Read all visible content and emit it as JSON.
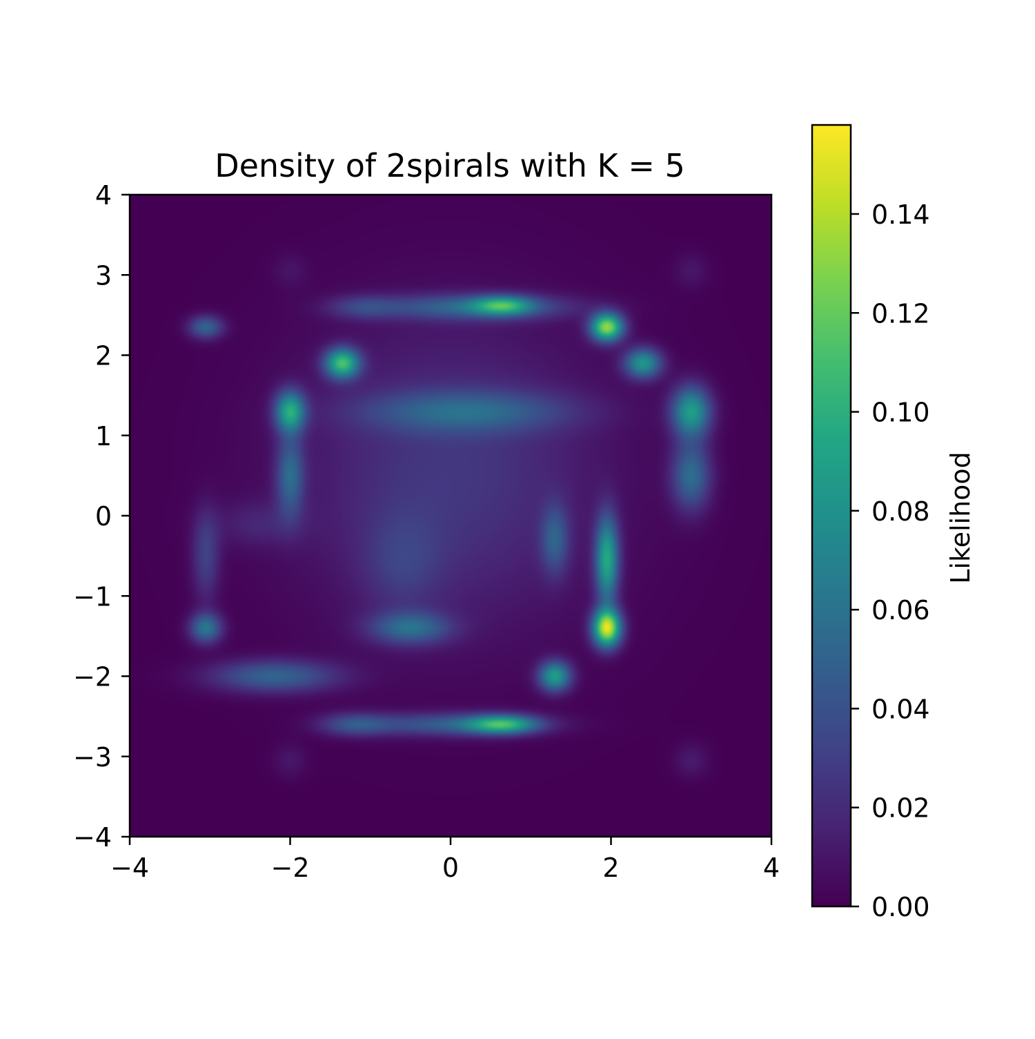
{
  "chart_data": {
    "type": "heatmap",
    "title": "Density of 2spirals with K = 5",
    "xlabel": "",
    "ylabel": "",
    "xlim": [
      -4,
      4
    ],
    "ylim": [
      -4,
      4
    ],
    "x_ticks": [
      -4,
      -2,
      0,
      2,
      4
    ],
    "x_tick_labels": [
      "−4",
      "−2",
      "0",
      "2",
      "4"
    ],
    "y_ticks": [
      -4,
      -3,
      -2,
      -1,
      0,
      1,
      2,
      3,
      4
    ],
    "y_tick_labels": [
      "−4",
      "−3",
      "−2",
      "−1",
      "0",
      "1",
      "2",
      "3",
      "4"
    ],
    "grid": false,
    "colormap": "viridis",
    "colorbar": {
      "label": "Likelihood",
      "range": [
        0,
        0.158
      ],
      "ticks": [
        0,
        0.02,
        0.04,
        0.06,
        0.08,
        0.1,
        0.12,
        0.14
      ],
      "tick_labels": [
        "0.00",
        "0.02",
        "0.04",
        "0.06",
        "0.08",
        "0.10",
        "0.12",
        "0.14"
      ]
    },
    "density_components": [
      {
        "mx": 0.0,
        "my": 0.5,
        "sx": 1.3,
        "sy": 1.3,
        "w": 0.026
      },
      {
        "mx": -0.6,
        "my": -0.6,
        "sx": 0.35,
        "sy": 0.45,
        "w": 0.018
      },
      {
        "mx": -2.4,
        "my": -0.1,
        "sx": 0.4,
        "sy": 0.2,
        "w": 0.014
      },
      {
        "mx": 0.3,
        "my": 2.6,
        "sx": 0.8,
        "sy": 0.11,
        "w": 0.05
      },
      {
        "mx": 0.65,
        "my": 2.62,
        "sx": 0.25,
        "sy": 0.08,
        "w": 0.07
      },
      {
        "mx": -1.1,
        "my": 2.6,
        "sx": 0.3,
        "sy": 0.1,
        "w": 0.025
      },
      {
        "mx": -3.05,
        "my": 2.35,
        "sx": 0.15,
        "sy": 0.1,
        "w": 0.05
      },
      {
        "mx": -1.35,
        "my": 1.9,
        "sx": 0.15,
        "sy": 0.13,
        "w": 0.105
      },
      {
        "mx": 1.95,
        "my": 2.35,
        "sx": 0.14,
        "sy": 0.12,
        "w": 0.13
      },
      {
        "mx": 2.4,
        "my": 1.9,
        "sx": 0.16,
        "sy": 0.13,
        "w": 0.08
      },
      {
        "mx": 3.0,
        "my": 1.3,
        "sx": 0.17,
        "sy": 0.22,
        "w": 0.085
      },
      {
        "mx": 3.0,
        "my": 0.5,
        "sx": 0.17,
        "sy": 0.3,
        "w": 0.055
      },
      {
        "mx": -2.0,
        "my": 1.3,
        "sx": 0.13,
        "sy": 0.18,
        "w": 0.09
      },
      {
        "mx": -2.0,
        "my": 0.5,
        "sx": 0.12,
        "sy": 0.35,
        "w": 0.05
      },
      {
        "mx": 0.2,
        "my": 1.3,
        "sx": 0.9,
        "sy": 0.18,
        "w": 0.04
      },
      {
        "mx": -3.05,
        "my": -0.5,
        "sx": 0.12,
        "sy": 0.4,
        "w": 0.03
      },
      {
        "mx": -3.05,
        "my": -1.4,
        "sx": 0.14,
        "sy": 0.13,
        "w": 0.06
      },
      {
        "mx": -2.2,
        "my": -2.0,
        "sx": 0.55,
        "sy": 0.14,
        "w": 0.05
      },
      {
        "mx": -0.5,
        "my": -1.4,
        "sx": 0.35,
        "sy": 0.14,
        "w": 0.05
      },
      {
        "mx": 1.3,
        "my": -0.3,
        "sx": 0.12,
        "sy": 0.3,
        "w": 0.04
      },
      {
        "mx": 1.95,
        "my": -0.55,
        "sx": 0.1,
        "sy": 0.38,
        "w": 0.09
      },
      {
        "mx": 1.95,
        "my": -1.4,
        "sx": 0.12,
        "sy": 0.16,
        "w": 0.145
      },
      {
        "mx": 1.3,
        "my": -2.0,
        "sx": 0.14,
        "sy": 0.13,
        "w": 0.085
      },
      {
        "mx": 0.65,
        "my": -2.6,
        "sx": 0.3,
        "sy": 0.08,
        "w": 0.085
      },
      {
        "mx": 0.0,
        "my": -2.6,
        "sx": 0.75,
        "sy": 0.1,
        "w": 0.045
      },
      {
        "mx": -1.2,
        "my": -2.6,
        "sx": 0.3,
        "sy": 0.1,
        "w": 0.035
      },
      {
        "mx": -2.0,
        "my": 3.05,
        "sx": 0.15,
        "sy": 0.15,
        "w": 0.008
      },
      {
        "mx": 3.0,
        "my": 3.05,
        "sx": 0.15,
        "sy": 0.15,
        "w": 0.01
      },
      {
        "mx": -2.0,
        "my": -3.05,
        "sx": 0.15,
        "sy": 0.15,
        "w": 0.01
      },
      {
        "mx": 3.0,
        "my": -3.05,
        "sx": 0.15,
        "sy": 0.15,
        "w": 0.012
      }
    ]
  }
}
